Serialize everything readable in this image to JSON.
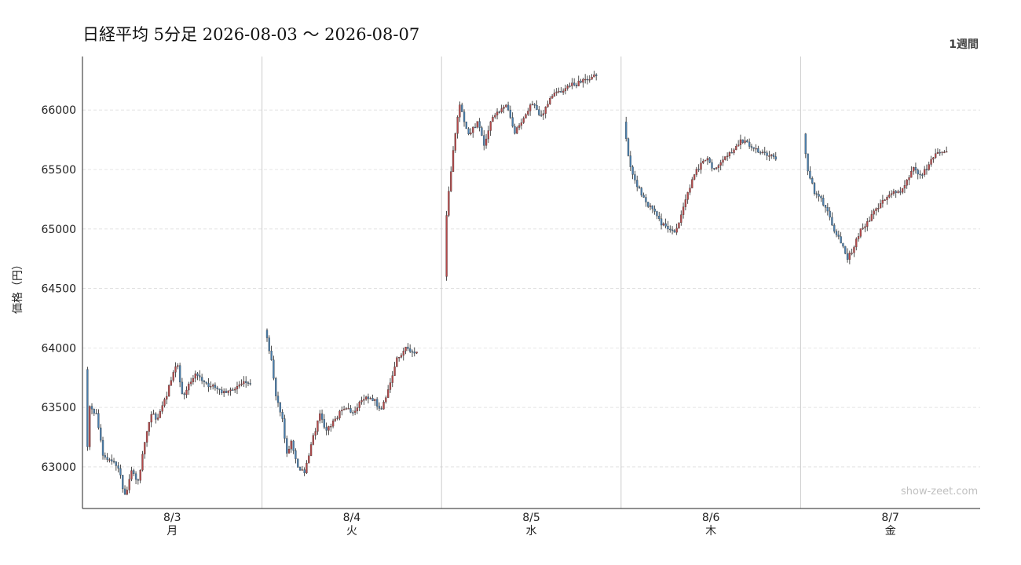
{
  "header": {
    "title": "日経平均 5分足  2026-08-03 〜 2026-08-07",
    "period_label": "1週間"
  },
  "watermark": "show-zeet.com",
  "colors": {
    "up": "#b5494a",
    "down": "#4a7fae",
    "wick": "#222222",
    "grid": "#dddddd",
    "divider": "#cccccc"
  },
  "chart_data": {
    "type": "candlestick",
    "ylabel": "価格（円）",
    "ylim": [
      62650,
      66450
    ],
    "yticks": [
      63000,
      63500,
      64000,
      64500,
      65000,
      65500,
      66000
    ],
    "grid": true,
    "days": [
      {
        "date": "8/3",
        "weekday": "月",
        "anchors": [
          [
            0,
            63820
          ],
          [
            1,
            63150
          ],
          [
            2,
            63500
          ],
          [
            5,
            63450
          ],
          [
            8,
            63100
          ],
          [
            12,
            63050
          ],
          [
            15,
            63000
          ],
          [
            18,
            62750
          ],
          [
            21,
            62950
          ],
          [
            24,
            62880
          ],
          [
            27,
            63200
          ],
          [
            30,
            63450
          ],
          [
            33,
            63400
          ],
          [
            36,
            63550
          ],
          [
            40,
            63800
          ],
          [
            42,
            63850
          ],
          [
            44,
            63600
          ],
          [
            46,
            63650
          ],
          [
            50,
            63780
          ],
          [
            55,
            63700
          ],
          [
            60,
            63650
          ],
          [
            65,
            63620
          ],
          [
            70,
            63700
          ],
          [
            74,
            63700
          ]
        ]
      },
      {
        "date": "8/4",
        "weekday": "火",
        "anchors": [
          [
            0,
            64150
          ],
          [
            3,
            63900
          ],
          [
            5,
            63600
          ],
          [
            8,
            63400
          ],
          [
            10,
            63100
          ],
          [
            12,
            63200
          ],
          [
            15,
            63000
          ],
          [
            18,
            62950
          ],
          [
            20,
            63100
          ],
          [
            22,
            63250
          ],
          [
            25,
            63450
          ],
          [
            28,
            63300
          ],
          [
            32,
            63400
          ],
          [
            36,
            63500
          ],
          [
            40,
            63450
          ],
          [
            45,
            63580
          ],
          [
            50,
            63550
          ],
          [
            53,
            63480
          ],
          [
            56,
            63650
          ],
          [
            60,
            63900
          ],
          [
            64,
            64000
          ],
          [
            68,
            63950
          ]
        ]
      },
      {
        "date": "8/5",
        "weekday": "水",
        "anchors": [
          [
            0,
            64600
          ],
          [
            1,
            65100
          ],
          [
            3,
            65500
          ],
          [
            5,
            65800
          ],
          [
            7,
            66050
          ],
          [
            9,
            65900
          ],
          [
            11,
            65800
          ],
          [
            15,
            65900
          ],
          [
            18,
            65700
          ],
          [
            21,
            65900
          ],
          [
            25,
            66000
          ],
          [
            28,
            66050
          ],
          [
            32,
            65800
          ],
          [
            36,
            65950
          ],
          [
            40,
            66050
          ],
          [
            44,
            65950
          ],
          [
            48,
            66100
          ],
          [
            52,
            66150
          ],
          [
            56,
            66200
          ],
          [
            60,
            66220
          ],
          [
            64,
            66250
          ],
          [
            68,
            66280
          ]
        ]
      },
      {
        "date": "8/6",
        "weekday": "木",
        "anchors": [
          [
            0,
            65900
          ],
          [
            2,
            65600
          ],
          [
            5,
            65400
          ],
          [
            8,
            65300
          ],
          [
            11,
            65200
          ],
          [
            14,
            65150
          ],
          [
            17,
            65050
          ],
          [
            20,
            65000
          ],
          [
            23,
            64980
          ],
          [
            26,
            65100
          ],
          [
            29,
            65300
          ],
          [
            32,
            65450
          ],
          [
            35,
            65550
          ],
          [
            38,
            65580
          ],
          [
            41,
            65500
          ],
          [
            45,
            65600
          ],
          [
            49,
            65650
          ],
          [
            53,
            65750
          ],
          [
            57,
            65700
          ],
          [
            61,
            65650
          ],
          [
            65,
            65620
          ],
          [
            68,
            65600
          ]
        ]
      },
      {
        "date": "8/7",
        "weekday": "金",
        "anchors": [
          [
            0,
            65800
          ],
          [
            2,
            65500
          ],
          [
            5,
            65300
          ],
          [
            8,
            65250
          ],
          [
            11,
            65150
          ],
          [
            14,
            65000
          ],
          [
            17,
            64900
          ],
          [
            20,
            64750
          ],
          [
            23,
            64850
          ],
          [
            26,
            65000
          ],
          [
            29,
            65050
          ],
          [
            32,
            65150
          ],
          [
            35,
            65200
          ],
          [
            38,
            65280
          ],
          [
            41,
            65320
          ],
          [
            44,
            65300
          ],
          [
            47,
            65400
          ],
          [
            50,
            65500
          ],
          [
            53,
            65450
          ],
          [
            56,
            65500
          ],
          [
            59,
            65600
          ],
          [
            62,
            65650
          ],
          [
            64,
            65650
          ]
        ]
      }
    ]
  }
}
